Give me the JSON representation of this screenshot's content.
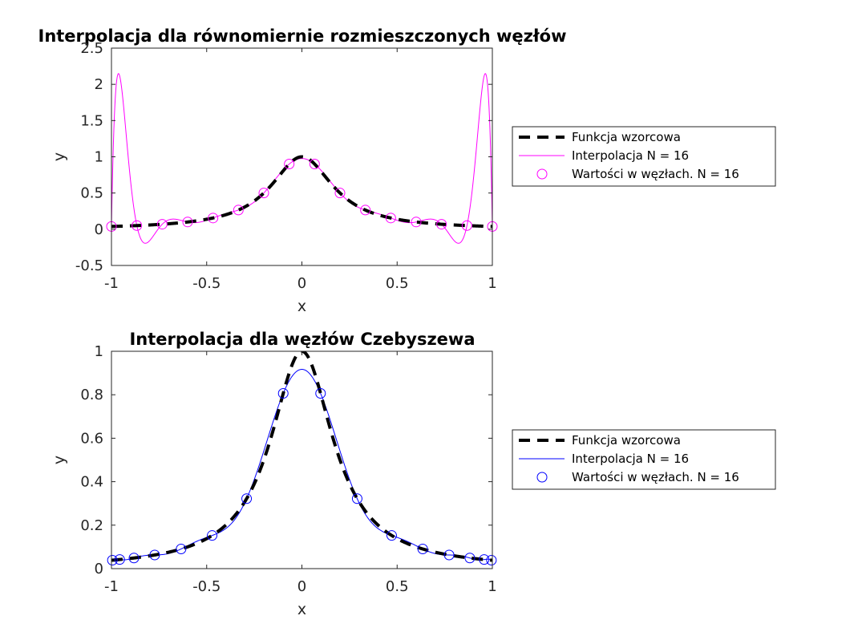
{
  "chart_data": [
    {
      "type": "line",
      "title": "Interpolacja dla równomiernie rozmieszczonych węzłów",
      "xlabel": "x",
      "ylabel": "y",
      "xlim": [
        -1,
        1
      ],
      "ylim": [
        -0.5,
        2.5
      ],
      "xticks": [
        -1,
        -0.5,
        0,
        0.5,
        1
      ],
      "xtick_labels": [
        "-1",
        "-0.5",
        "0",
        "0.5",
        "1"
      ],
      "yticks": [
        -0.5,
        0,
        0.5,
        1,
        1.5,
        2,
        2.5
      ],
      "ytick_labels": [
        "-0.5",
        "0",
        "0.5",
        "1",
        "1.5",
        "2",
        "2.5"
      ],
      "grid": false,
      "legend_position": "right",
      "accent_color": "#ff00ff",
      "nodes": "equispaced",
      "node_count": 16,
      "series": [
        {
          "name": "Funkcja wzorcowa",
          "style": "dashed",
          "color": "#000000",
          "function": "1/(1+25x^2)"
        },
        {
          "name": "Interpolacja N = 16",
          "style": "solid",
          "color": "#ff00ff",
          "function": "polynomial interpolant"
        },
        {
          "name": "Wartości w węzłach. N = 16",
          "style": "markers",
          "marker": "circle",
          "color": "#ff00ff"
        }
      ]
    },
    {
      "type": "line",
      "title": "Interpolacja dla węzłów Czebyszewa",
      "xlabel": "x",
      "ylabel": "y",
      "xlim": [
        -1,
        1
      ],
      "ylim": [
        0,
        1
      ],
      "xticks": [
        -1,
        -0.5,
        0,
        0.5,
        1
      ],
      "xtick_labels": [
        "-1",
        "-0.5",
        "0",
        "0.5",
        "1"
      ],
      "yticks": [
        0,
        0.2,
        0.4,
        0.6,
        0.8,
        1
      ],
      "ytick_labels": [
        "0",
        "0.2",
        "0.4",
        "0.6",
        "0.8",
        "1"
      ],
      "grid": false,
      "legend_position": "right",
      "accent_color": "#0000ff",
      "nodes": "chebyshev",
      "node_count": 16,
      "series": [
        {
          "name": "Funkcja wzorcowa",
          "style": "dashed",
          "color": "#000000",
          "function": "1/(1+25x^2)"
        },
        {
          "name": "Interpolacja N = 16",
          "style": "solid",
          "color": "#0000ff",
          "function": "polynomial interpolant"
        },
        {
          "name": "Wartości w węzłach. N = 16",
          "style": "markers",
          "marker": "circle",
          "color": "#0000ff"
        }
      ]
    }
  ]
}
